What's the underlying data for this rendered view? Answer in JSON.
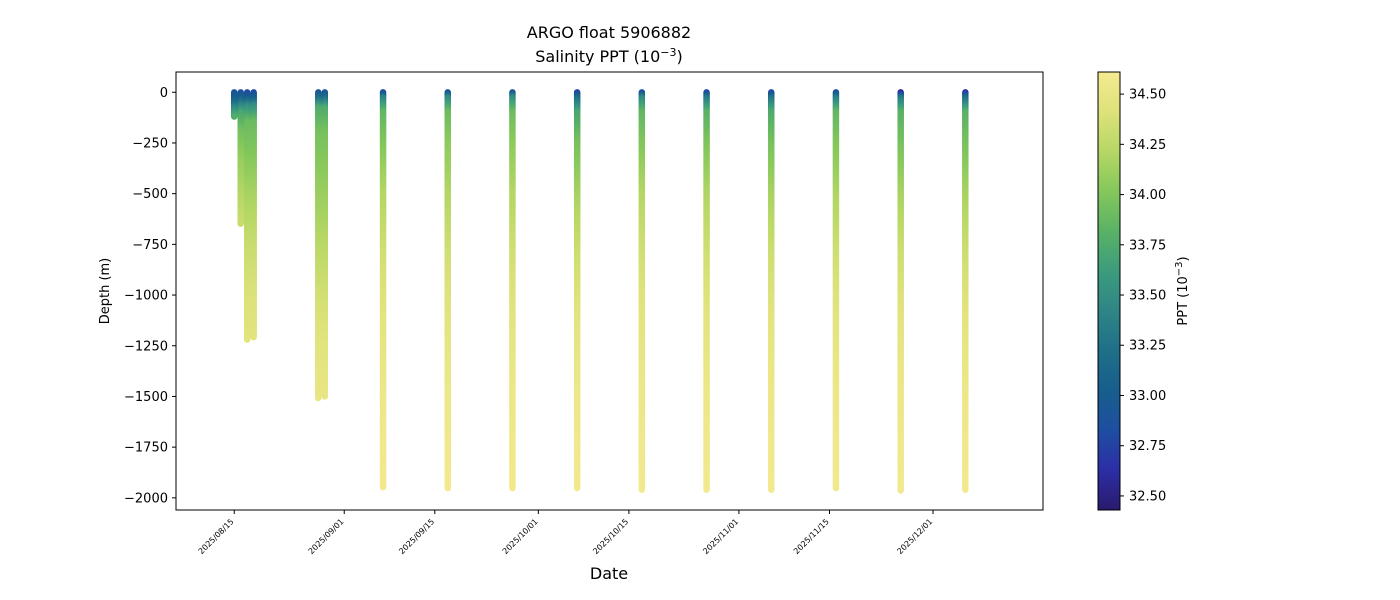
{
  "chart_data": {
    "type": "scatter",
    "title": "ARGO float 5906882",
    "subtitle_prefix": "Salinity PPT (10",
    "subtitle_exp": "−3",
    "subtitle_suffix": ")",
    "xlabel": "Date",
    "ylabel": "Depth (m)",
    "xlim": [
      "2025-08-06",
      "2025-12-18"
    ],
    "ylim": [
      -2060,
      100
    ],
    "x_ticks": [
      "2025/08/15",
      "2025/09/01",
      "2025/09/15",
      "2025/10/01",
      "2025/10/15",
      "2025/11/01",
      "2025/11/15",
      "2025/12/01"
    ],
    "y_ticks": [
      0,
      -250,
      -500,
      -750,
      -1000,
      -1250,
      -1500,
      -1750,
      -2000
    ],
    "y_tick_labels": [
      "0",
      "−250",
      "−500",
      "−750",
      "−1000",
      "−1250",
      "−1500",
      "−1750",
      "−2000"
    ],
    "colorbar": {
      "label_prefix": "PPT (10",
      "label_exp": "−3",
      "label_suffix": ")",
      "range": [
        32.43,
        34.61
      ],
      "ticks": [
        32.5,
        32.75,
        33.0,
        33.25,
        33.5,
        33.75,
        34.0,
        34.25,
        34.5
      ],
      "tick_labels": [
        "32.50",
        "32.75",
        "33.00",
        "33.25",
        "33.50",
        "33.75",
        "34.00",
        "34.25",
        "34.50"
      ],
      "colormap": "haline",
      "stops": [
        "#2a1a6c",
        "#2c2ea6",
        "#1e4ea0",
        "#175e8d",
        "#1f6f88",
        "#2f8586",
        "#3c9c7c",
        "#5ab266",
        "#84c75b",
        "#b6d765",
        "#dde27a",
        "#f6ea91"
      ]
    },
    "profiles": [
      {
        "date": "2025-08-15",
        "depths": [
          0,
          -20,
          -50,
          -80,
          -120
        ],
        "values": [
          32.9,
          32.95,
          33.15,
          33.45,
          33.75
        ]
      },
      {
        "date": "2025-08-16",
        "depths": [
          0,
          -30,
          -60,
          -100,
          -200,
          -350,
          -500,
          -650
        ],
        "values": [
          32.85,
          33.05,
          33.35,
          33.7,
          33.95,
          34.1,
          34.2,
          34.3
        ]
      },
      {
        "date": "2025-08-17",
        "depths": [
          0,
          -30,
          -70,
          -150,
          -300,
          -500,
          -750,
          -1000,
          -1220
        ],
        "values": [
          32.8,
          33.0,
          33.5,
          33.9,
          34.0,
          34.15,
          34.3,
          34.4,
          34.45
        ]
      },
      {
        "date": "2025-08-18",
        "depths": [
          0,
          -30,
          -70,
          -150,
          -300,
          -500,
          -750,
          -1000,
          -1210
        ],
        "values": [
          32.8,
          33.0,
          33.5,
          33.9,
          34.0,
          34.15,
          34.3,
          34.4,
          34.45
        ]
      },
      {
        "date": "2025-08-28",
        "depths": [
          0,
          -30,
          -80,
          -200,
          -400,
          -700,
          -1000,
          -1250,
          -1510
        ],
        "values": [
          32.9,
          33.2,
          33.75,
          33.95,
          34.05,
          34.2,
          34.35,
          34.45,
          34.5
        ]
      },
      {
        "date": "2025-08-29",
        "depths": [
          0,
          -30,
          -80,
          -200,
          -400,
          -700,
          -1000,
          -1250,
          -1500
        ],
        "values": [
          32.9,
          33.2,
          33.75,
          33.95,
          34.05,
          34.2,
          34.35,
          34.45,
          34.5
        ]
      },
      {
        "date": "2025-09-07",
        "depths": [
          0,
          -30,
          -100,
          -250,
          -500,
          -800,
          -1100,
          -1400,
          -1700,
          -1950
        ],
        "values": [
          32.75,
          33.4,
          33.85,
          34.0,
          34.2,
          34.35,
          34.45,
          34.52,
          34.56,
          34.58
        ]
      },
      {
        "date": "2025-09-17",
        "depths": [
          0,
          -30,
          -100,
          -250,
          -500,
          -800,
          -1100,
          -1400,
          -1700,
          -1955
        ],
        "values": [
          32.85,
          33.45,
          33.9,
          34.05,
          34.2,
          34.35,
          34.45,
          34.52,
          34.56,
          34.58
        ]
      },
      {
        "date": "2025-09-27",
        "depths": [
          0,
          -30,
          -100,
          -250,
          -500,
          -800,
          -1100,
          -1400,
          -1700,
          -1955
        ],
        "values": [
          32.9,
          33.5,
          33.9,
          34.05,
          34.2,
          34.35,
          34.45,
          34.52,
          34.56,
          34.58
        ]
      },
      {
        "date": "2025-10-07",
        "depths": [
          0,
          -30,
          -100,
          -250,
          -500,
          -800,
          -1100,
          -1400,
          -1700,
          -1955
        ],
        "values": [
          32.7,
          33.2,
          33.7,
          33.95,
          34.15,
          34.33,
          34.45,
          34.52,
          34.56,
          34.58
        ]
      },
      {
        "date": "2025-10-17",
        "depths": [
          0,
          -30,
          -100,
          -250,
          -500,
          -800,
          -1100,
          -1400,
          -1700,
          -1960
        ],
        "values": [
          32.8,
          33.45,
          33.85,
          34.0,
          34.2,
          34.35,
          34.45,
          34.52,
          34.56,
          34.58
        ]
      },
      {
        "date": "2025-10-27",
        "depths": [
          0,
          -30,
          -100,
          -250,
          -500,
          -800,
          -1100,
          -1400,
          -1700,
          -1960
        ],
        "values": [
          32.75,
          33.3,
          33.8,
          33.98,
          34.18,
          34.34,
          34.45,
          34.52,
          34.56,
          34.58
        ]
      },
      {
        "date": "2025-11-06",
        "depths": [
          0,
          -30,
          -100,
          -250,
          -500,
          -800,
          -1100,
          -1400,
          -1700,
          -1960
        ],
        "values": [
          32.75,
          33.25,
          33.75,
          33.95,
          34.15,
          34.33,
          34.45,
          34.52,
          34.56,
          34.58
        ]
      },
      {
        "date": "2025-11-16",
        "depths": [
          0,
          -30,
          -100,
          -250,
          -500,
          -800,
          -1100,
          -1400,
          -1700,
          -1955
        ],
        "values": [
          32.8,
          33.35,
          33.85,
          34.0,
          34.18,
          34.34,
          34.45,
          34.52,
          34.56,
          34.58
        ]
      },
      {
        "date": "2025-11-26",
        "depths": [
          0,
          -30,
          -100,
          -250,
          -500,
          -800,
          -1100,
          -1400,
          -1700,
          -1965
        ],
        "values": [
          32.5,
          33.3,
          33.8,
          33.95,
          34.15,
          34.33,
          34.45,
          34.52,
          34.56,
          34.58
        ]
      },
      {
        "date": "2025-12-06",
        "depths": [
          0,
          -30,
          -100,
          -250,
          -500,
          -800,
          -1100,
          -1400,
          -1700,
          -1960
        ],
        "values": [
          32.6,
          33.2,
          33.8,
          33.95,
          34.15,
          34.33,
          34.45,
          34.52,
          34.56,
          34.58
        ]
      }
    ]
  }
}
